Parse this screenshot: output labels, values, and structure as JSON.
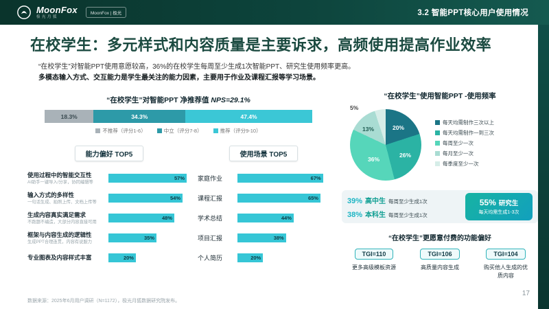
{
  "header": {
    "brand": "MoonFox",
    "brand_sub": "极光月狐",
    "badge": "MoonFox | 极光",
    "section": "3.2 智能PPT核心用户使用情况"
  },
  "title": "在校学生：多元样式和内容质量是主要诉求，高频使用提高作业效率",
  "subtitle": {
    "line1": "“在校学生”对智能PPT使用意愿较高，36%的在校学生每周至少生成1次智能PPT、研究生使用频率更高。",
    "line2_prefix": "多模态输入方式、交互能力是学生最关注的能力因素，主要用于",
    "line2_highlight": "作业及课程汇报",
    "line2_suffix": "等学习场景。"
  },
  "colors": {
    "accent": "#36c6d6",
    "header_dark": "#0c3f37"
  },
  "chart_data": [
    {
      "type": "bar",
      "id": "nps-stacked",
      "title_prefix": "“在校学生”对智能PPT 净推荐值 ",
      "title_nps": "NPS=29.1%",
      "segments": [
        {
          "label": "不推荐（评分1-6）",
          "value": 18.3,
          "display": "18.3%",
          "color": "#a9b2b8",
          "text_color": "#3a4a50"
        },
        {
          "label": "中立（评分7-8）",
          "value": 34.3,
          "display": "34.3%",
          "color": "#2d9aa8",
          "text_color": "#ffffff"
        },
        {
          "label": "推荐（评分9-10）",
          "value": 47.4,
          "display": "47.4%",
          "color": "#3bc7d6",
          "text_color": "#ffffff"
        }
      ]
    },
    {
      "type": "bar",
      "id": "ability-top5",
      "title": "能力偏好 TOP5",
      "xmax": 60,
      "bar_color": "#36c6d6",
      "rows": [
        {
          "label": "使用过程中的智能交互性",
          "sub": "AI助手一键导入/分享，协同编辑等",
          "value": 57,
          "display": "57%"
        },
        {
          "label": "输入方式的多样性",
          "sub": "一句话生成、拍照上传、文档上传等",
          "value": 54,
          "display": "54%"
        },
        {
          "label": "生成内容真实满足需求",
          "sub": "不跑题不编造，大部分内容直接可用",
          "value": 48,
          "display": "48%"
        },
        {
          "label": "框架与内容生成的逻辑性",
          "sub": "生成PPT合理连贯，内容有说服力",
          "value": 35,
          "display": "35%"
        },
        {
          "label": "专业图表及内容样式丰富",
          "sub": "",
          "value": 20,
          "display": "20%"
        }
      ]
    },
    {
      "type": "bar",
      "id": "scene-top5",
      "title": "使用场景 TOP5",
      "xmax": 72,
      "bar_color": "#36c6d6",
      "rows": [
        {
          "label": "家庭作业",
          "value": 67,
          "display": "67%"
        },
        {
          "label": "课程汇报",
          "value": 65,
          "display": "65%"
        },
        {
          "label": "学术总结",
          "value": 44,
          "display": "44%"
        },
        {
          "label": "项目汇报",
          "value": 38,
          "display": "38%"
        },
        {
          "label": "个人简历",
          "value": 20,
          "display": "20%"
        }
      ]
    },
    {
      "type": "pie",
      "id": "usage-frequency",
      "title": "“在校学生”使用智能PPT -使用频率",
      "slices": [
        {
          "label": "每天均需制作三次以上",
          "value": 20,
          "display": "20%",
          "color": "#1b7586"
        },
        {
          "label": "每天均需制作一到三次",
          "value": 26,
          "display": "26%",
          "color": "#2bb3a4"
        },
        {
          "label": "每周至少一次",
          "value": 36,
          "display": "36%",
          "color": "#56d6ba"
        },
        {
          "label": "每月至少一次",
          "value": 13,
          "display": "13%",
          "color": "#a9dcd3"
        },
        {
          "label": "每季度至少一次",
          "value": 5,
          "display": "5%",
          "color": "#d6ede8"
        }
      ]
    }
  ],
  "stats": {
    "rows": [
      {
        "pct": "39%",
        "group": "高中生",
        "desc": "每周至少生成1次"
      },
      {
        "pct": "38%",
        "group": "本科生",
        "desc": "每周至少生成1次"
      }
    ],
    "highlight": {
      "pct": "55%",
      "group": "研究生",
      "desc": "每天均需生成1-3次"
    }
  },
  "payment": {
    "title": "“在校学生”更愿意付费的功能偏好",
    "items": [
      {
        "tgi": "TGI=110",
        "desc": "更多高级模板资源"
      },
      {
        "tgi": "TGI=106",
        "desc": "高质量内容生成"
      },
      {
        "tgi": "TGI=104",
        "desc": "购买他人生成的优质内容"
      }
    ]
  },
  "footer": {
    "source": "数据来源：2025年6月用户调研（N=1172），极光月狐数据研究院发布。",
    "page": "17"
  }
}
